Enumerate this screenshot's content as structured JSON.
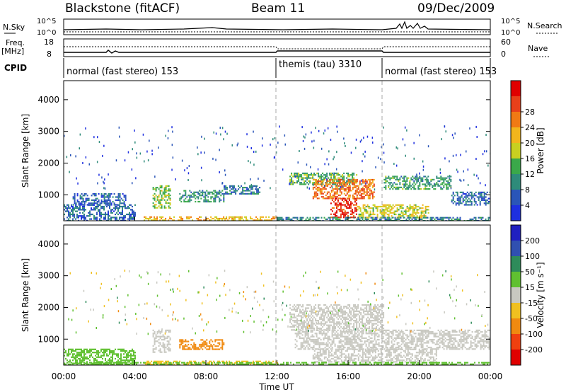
{
  "header": {
    "station": "Blackstone (fitACF)",
    "beam": "Beam 11",
    "date": "09/Dec/2009"
  },
  "status_panels": {
    "nsky_label": "N.Sky",
    "nsky_ticks": [
      "10^5",
      "10^0"
    ],
    "nsearch_label": "N.Search",
    "nsearch_ticks": [
      "10^5",
      "10^0"
    ],
    "freq_label": "Freq.",
    "freq_unit": "[MHz]",
    "freq_ticks": [
      "18",
      "8"
    ],
    "nave_label": "Nave",
    "nave_ticks": [
      "60",
      "0"
    ],
    "cpid_label": "CPID",
    "cpid_segments": [
      {
        "label": "normal (fast stereo) 153",
        "start_h": 0,
        "end_h": 12
      },
      {
        "label": "themis (tau) 3310",
        "start_h": 12,
        "end_h": 18
      },
      {
        "label": "normal (fast stereo) 153",
        "start_h": 18,
        "end_h": 24
      }
    ]
  },
  "chart_data": [
    {
      "type": "heatmap",
      "panel": "power",
      "ylabel": "Slant Range [km]",
      "ylim": [
        180,
        4600
      ],
      "yticks": [
        "1000",
        "2000",
        "3000",
        "4000"
      ],
      "xlim_hours": [
        0,
        24
      ],
      "colorbar": {
        "label": "Power [dB]",
        "ticks": [
          "4",
          "8",
          "12",
          "16",
          "20",
          "24",
          "28"
        ],
        "range": [
          0,
          30
        ]
      },
      "regions": [
        {
          "t0": 0.0,
          "t1": 4.0,
          "r0": 180,
          "r1": 700,
          "value": 6
        },
        {
          "t0": 0.5,
          "t1": 3.5,
          "r0": 700,
          "r1": 1050,
          "value": 5
        },
        {
          "t0": 5.0,
          "t1": 6.0,
          "r0": 600,
          "r1": 1300,
          "value": 14
        },
        {
          "t0": 6.5,
          "t1": 9.0,
          "r0": 800,
          "r1": 1150,
          "value": 9
        },
        {
          "t0": 9.0,
          "t1": 11.0,
          "r0": 1050,
          "r1": 1300,
          "value": 7
        },
        {
          "t0": 4.5,
          "t1": 12.0,
          "r0": 180,
          "r1": 320,
          "value": 18
        },
        {
          "t0": 12.7,
          "t1": 16.5,
          "r0": 1350,
          "r1": 1700,
          "value": 11
        },
        {
          "t0": 14.0,
          "t1": 17.5,
          "r0": 900,
          "r1": 1500,
          "value": 22
        },
        {
          "t0": 15.0,
          "t1": 16.5,
          "r0": 300,
          "r1": 900,
          "value": 26
        },
        {
          "t0": 16.5,
          "t1": 20.5,
          "r0": 300,
          "r1": 700,
          "value": 16
        },
        {
          "t0": 18.0,
          "t1": 21.8,
          "r0": 1200,
          "r1": 1600,
          "value": 10
        },
        {
          "t0": 21.8,
          "t1": 24.0,
          "r0": 700,
          "r1": 1100,
          "value": 6
        },
        {
          "t0": 12.0,
          "t1": 24.0,
          "r0": 180,
          "r1": 300,
          "value": 8
        }
      ]
    },
    {
      "type": "heatmap",
      "panel": "velocity",
      "ylabel": "Slant Range [km]",
      "ylim": [
        180,
        4600
      ],
      "yticks": [
        "1000",
        "2000",
        "3000",
        "4000"
      ],
      "xlim_hours": [
        0,
        24
      ],
      "xlabel": "Time UT",
      "xticks": [
        "00:00",
        "04:00",
        "08:00",
        "12:00",
        "16:00",
        "20:00",
        "00:00"
      ],
      "colorbar": {
        "label": "Velocity [m s⁻¹]",
        "ticks": [
          "200",
          "100",
          "50",
          "15",
          "-15",
          "-50",
          "-100",
          "-200"
        ],
        "range": [
          -250,
          250
        ]
      },
      "regions": [
        {
          "t0": 0.0,
          "t1": 4.0,
          "r0": 180,
          "r1": 700,
          "value": 40
        },
        {
          "t0": 5.0,
          "t1": 6.0,
          "r0": 600,
          "r1": 1300,
          "value": 0
        },
        {
          "t0": 6.5,
          "t1": 9.0,
          "r0": 700,
          "r1": 1000,
          "value": -70
        },
        {
          "t0": 4.5,
          "t1": 12.0,
          "r0": 180,
          "r1": 320,
          "value": -40
        },
        {
          "t0": 12.7,
          "t1": 18.0,
          "r0": 1300,
          "r1": 2100,
          "value": 0
        },
        {
          "t0": 13.0,
          "t1": 24.0,
          "r0": 700,
          "r1": 1300,
          "value": 0
        },
        {
          "t0": 14.0,
          "t1": 21.0,
          "r0": 300,
          "r1": 700,
          "value": 5
        },
        {
          "t0": 0.0,
          "t1": 24.0,
          "r0": 180,
          "r1": 280,
          "value": 30
        }
      ]
    }
  ]
}
